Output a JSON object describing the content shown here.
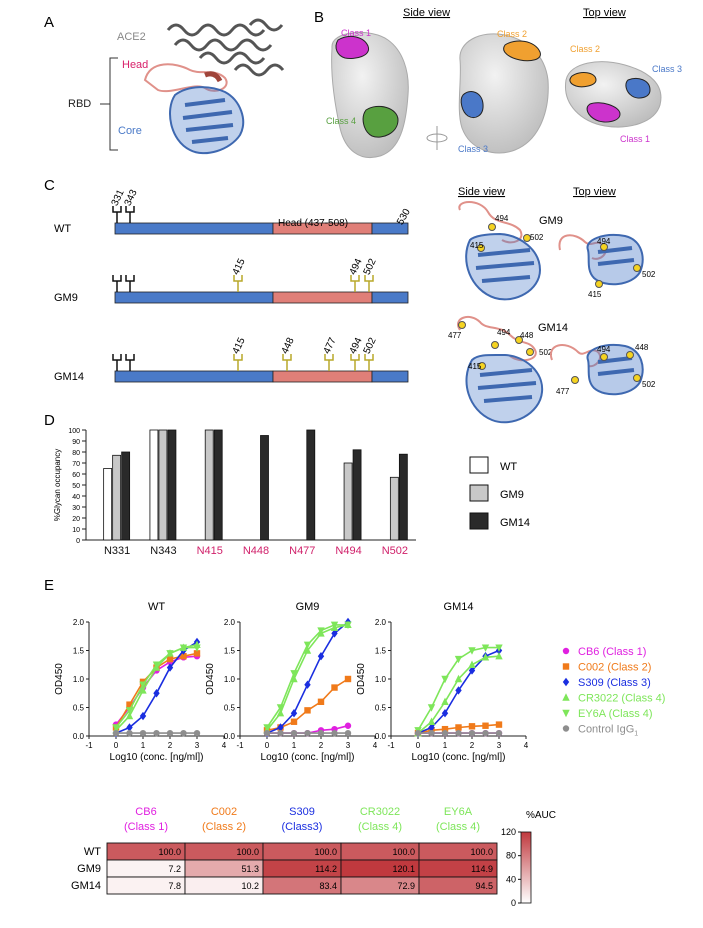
{
  "panels": {
    "a": {
      "letter": "A",
      "ace2_label": "ACE2",
      "head_label": "Head",
      "rbd_label": "RBD",
      "core_label": "Core"
    },
    "b": {
      "letter": "B",
      "side_view": "Side view",
      "top_view": "Top view",
      "class_labels": {
        "class1_side": "Class 1",
        "class4_side": "Class 4",
        "class2_side": "Class 2",
        "class3_side": "Class 3",
        "class2_top": "Class 2",
        "class3_top": "Class 3",
        "class1_top": "Class 1"
      },
      "colors": {
        "class1": "#cc33cc",
        "class2": "#f0a030",
        "class3": "#4a78c8",
        "class4": "#58a040",
        "surface": "#d9d9d9"
      }
    },
    "c": {
      "letter": "C",
      "side_view": "Side view",
      "top_view": "Top view",
      "head_range": "Head (437-508)",
      "end_residue": "530",
      "colors": {
        "core": "#4a7ac8",
        "head": "#e07f78",
        "glycan_native": "#111111",
        "glycan_added": "#b8a82a",
        "sphere": "#f5d320"
      },
      "constructs": [
        {
          "name": "WT",
          "native_sites": [
            "331",
            "343"
          ],
          "added_sites": []
        },
        {
          "name": "GM9",
          "native_sites": [],
          "added_sites": [
            "415",
            "494",
            "502"
          ]
        },
        {
          "name": "GM14",
          "native_sites": [],
          "added_sites": [
            "415",
            "448",
            "477",
            "494",
            "502"
          ]
        }
      ],
      "structure_labels": {
        "gm9_title": "GM9",
        "gm14_title": "GM14",
        "gm9_side": [
          "494",
          "415",
          "502"
        ],
        "gm9_top": [
          "494",
          "502",
          "415"
        ],
        "gm14_side": [
          "477",
          "494",
          "448",
          "502",
          "415"
        ],
        "gm14_top": [
          "494",
          "448",
          "477",
          "502"
        ]
      }
    },
    "d": {
      "letter": "D"
    },
    "e": {
      "letter": "E"
    }
  },
  "chart_data": [
    {
      "panel": "D",
      "type": "bar",
      "ylabel": "%Glycan occupancy",
      "ylim": [
        0,
        100
      ],
      "yticks": [
        0,
        10,
        20,
        30,
        40,
        50,
        60,
        70,
        80,
        90,
        100
      ],
      "categories": [
        "N331",
        "N343",
        "N415",
        "N448",
        "N477",
        "N494",
        "N502"
      ],
      "category_colors": [
        "#111111",
        "#111111",
        "#d0206a",
        "#d0206a",
        "#d0206a",
        "#d0206a",
        "#d0206a"
      ],
      "series": [
        {
          "name": "WT",
          "fill": "#ffffff",
          "values": [
            65,
            100,
            null,
            null,
            null,
            null,
            null
          ]
        },
        {
          "name": "GM9",
          "fill": "#c8c8c8",
          "values": [
            77,
            100,
            100,
            null,
            null,
            70,
            57
          ]
        },
        {
          "name": "GM14",
          "fill": "#2a2a2a",
          "values": [
            80,
            100,
            100,
            95,
            100,
            82,
            78
          ]
        }
      ],
      "legend_position": "right"
    },
    {
      "panel": "E",
      "type": "line",
      "xlabel": "Log10 (conc. [ng/ml])",
      "ylabel": "OD450",
      "xlim": [
        -1,
        4
      ],
      "ylim": [
        0,
        2.0
      ],
      "xticks": [
        -1,
        0,
        1,
        2,
        3,
        4
      ],
      "yticks": [
        0.0,
        0.5,
        1.0,
        1.5,
        2.0
      ],
      "x": [
        0,
        0.5,
        1,
        1.5,
        2,
        2.5,
        3
      ],
      "legend": [
        {
          "name": "CB6 (Class 1)",
          "color": "#e020e0",
          "marker": "circle"
        },
        {
          "name": "C002 (Class 2)",
          "color": "#f07a1a",
          "marker": "square"
        },
        {
          "name": "S309 (Class 3)",
          "color": "#1a2ee0",
          "marker": "diamond"
        },
        {
          "name": "CR3022 (Class 4)",
          "color": "#7ee65a",
          "marker": "triangle-up"
        },
        {
          "name": "EY6A (Class 4)",
          "color": "#7ee65a",
          "marker": "triangle-down"
        },
        {
          "name": "Control IgG",
          "sub": "1",
          "color": "#8e8e8e",
          "marker": "circle"
        }
      ],
      "plots": [
        {
          "title": "WT",
          "series": [
            {
              "name": "CB6",
              "values": [
                0.2,
                0.5,
                0.85,
                1.15,
                1.3,
                1.38,
                1.4
              ]
            },
            {
              "name": "C002",
              "values": [
                0.15,
                0.55,
                0.95,
                1.2,
                1.35,
                1.4,
                1.45
              ]
            },
            {
              "name": "S309",
              "values": [
                0.05,
                0.15,
                0.35,
                0.75,
                1.2,
                1.5,
                1.65
              ]
            },
            {
              "name": "CR3022",
              "values": [
                0.1,
                0.35,
                0.8,
                1.2,
                1.45,
                1.55,
                1.6
              ]
            },
            {
              "name": "EY6A",
              "values": [
                0.15,
                0.45,
                0.9,
                1.25,
                1.45,
                1.55,
                1.55
              ]
            },
            {
              "name": "Control",
              "values": [
                0.05,
                0.05,
                0.05,
                0.05,
                0.05,
                0.05,
                0.05
              ]
            }
          ]
        },
        {
          "title": "GM9",
          "series": [
            {
              "name": "CB6",
              "values": [
                0.05,
                0.05,
                0.05,
                0.05,
                0.1,
                0.12,
                0.18
              ]
            },
            {
              "name": "C002",
              "values": [
                0.1,
                0.15,
                0.25,
                0.45,
                0.6,
                0.85,
                1.0
              ]
            },
            {
              "name": "S309",
              "values": [
                0.05,
                0.15,
                0.4,
                0.9,
                1.4,
                1.8,
                2.0
              ]
            },
            {
              "name": "CR3022",
              "values": [
                0.1,
                0.4,
                1.0,
                1.5,
                1.8,
                1.9,
                1.95
              ]
            },
            {
              "name": "EY6A",
              "values": [
                0.15,
                0.5,
                1.1,
                1.6,
                1.85,
                1.95,
                1.95
              ]
            },
            {
              "name": "Control",
              "values": [
                0.05,
                0.05,
                0.05,
                0.05,
                0.05,
                0.05,
                0.05
              ]
            }
          ]
        },
        {
          "title": "GM14",
          "series": [
            {
              "name": "CB6",
              "values": [
                0.05,
                0.05,
                0.05,
                0.05,
                0.05,
                0.05,
                0.05
              ]
            },
            {
              "name": "C002",
              "values": [
                0.05,
                0.1,
                0.12,
                0.15,
                0.17,
                0.18,
                0.2
              ]
            },
            {
              "name": "S309",
              "values": [
                0.05,
                0.15,
                0.4,
                0.8,
                1.15,
                1.4,
                1.5
              ]
            },
            {
              "name": "CR3022",
              "values": [
                0.05,
                0.25,
                0.6,
                1.0,
                1.25,
                1.38,
                1.4
              ]
            },
            {
              "name": "EY6A",
              "values": [
                0.1,
                0.5,
                1.0,
                1.35,
                1.5,
                1.55,
                1.55
              ]
            },
            {
              "name": "Control",
              "values": [
                0.05,
                0.05,
                0.05,
                0.05,
                0.05,
                0.05,
                0.05
              ]
            }
          ]
        }
      ]
    },
    {
      "panel": "E-table",
      "type": "heatmap",
      "columns": [
        {
          "name": "CB6",
          "class": "(Class 1)",
          "color": "#e020e0"
        },
        {
          "name": "C002",
          "class": "(Class 2)",
          "color": "#f07a1a"
        },
        {
          "name": "S309",
          "class": "(Class3)",
          "color": "#1a2ee0"
        },
        {
          "name": "CR3022",
          "class": "(Class 4)",
          "color": "#7ee65a"
        },
        {
          "name": "EY6A",
          "class": "(Class 4)",
          "color": "#7ee65a"
        }
      ],
      "rows": [
        {
          "name": "WT",
          "values": [
            "100.0",
            "100.0",
            "100.0",
            "100.0",
            "100.0"
          ]
        },
        {
          "name": "GM9",
          "values": [
            "7.2",
            "51.3",
            "114.2",
            "120.1",
            "114.9"
          ]
        },
        {
          "name": "GM14",
          "values": [
            "7.8",
            "10.2",
            "83.4",
            "72.9",
            "94.5"
          ]
        }
      ],
      "scale_title": "%AUC",
      "scale_ticks": [
        0,
        40,
        80,
        120
      ],
      "scale_range": [
        0,
        120
      ],
      "scale_colors": [
        "#ffffff",
        "#c0393e"
      ]
    }
  ]
}
